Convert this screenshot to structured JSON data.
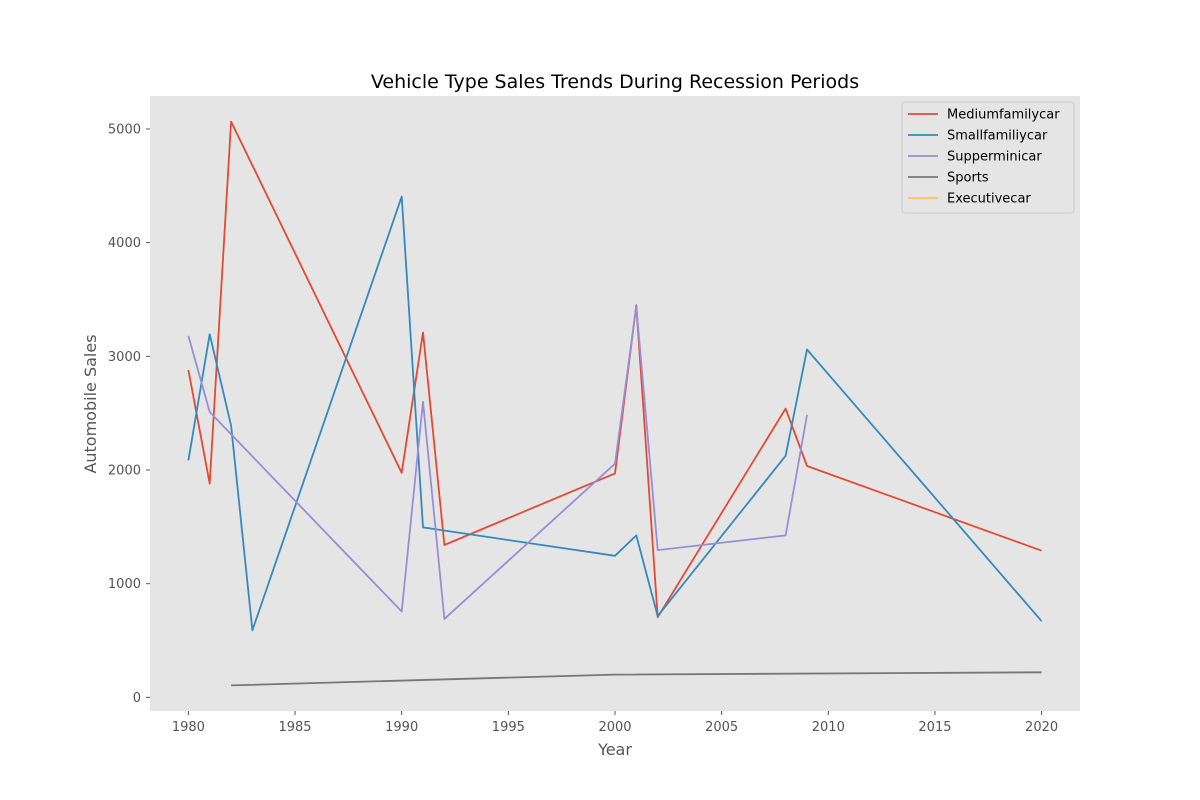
{
  "chart_data": {
    "type": "line",
    "title": "Vehicle Type Sales Trends During Recession Periods",
    "xlabel": "Year",
    "ylabel": "Automobile Sales",
    "xlim": [
      1978.2,
      2021.8
    ],
    "ylim": [
      -120,
      5290
    ],
    "xticks": [
      1980,
      1985,
      1990,
      1995,
      2000,
      2005,
      2010,
      2015,
      2020
    ],
    "yticks": [
      0,
      1000,
      2000,
      3000,
      4000,
      5000
    ],
    "grid": false,
    "legend_position": "top-right",
    "background": "#e5e5e5",
    "series": [
      {
        "name": "Mediumfamilycar",
        "color": "#e24a33",
        "points": [
          [
            1980,
            2880
          ],
          [
            1981,
            1880
          ],
          [
            1982,
            5065
          ],
          [
            1990,
            1975
          ],
          [
            1991,
            3210
          ],
          [
            1992,
            1340
          ],
          [
            2000,
            1970
          ],
          [
            2001,
            3450
          ],
          [
            2002,
            705
          ],
          [
            2008,
            2540
          ],
          [
            2009,
            2035
          ],
          [
            2020,
            1290
          ]
        ]
      },
      {
        "name": "Smallfamiliycar",
        "color": "#348abd",
        "points": [
          [
            1980,
            2085
          ],
          [
            1981,
            3195
          ],
          [
            1982,
            2390
          ],
          [
            1983,
            590
          ],
          [
            1990,
            4405
          ],
          [
            1991,
            1495
          ],
          [
            2000,
            1245
          ],
          [
            2001,
            1425
          ],
          [
            2002,
            715
          ],
          [
            2008,
            2125
          ],
          [
            2009,
            3060
          ],
          [
            2020,
            670
          ]
        ]
      },
      {
        "name": "Supperminicar",
        "color": "#988ed5",
        "points": [
          [
            1980,
            3180
          ],
          [
            1981,
            2510
          ],
          [
            1990,
            755
          ],
          [
            1991,
            2600
          ],
          [
            1992,
            690
          ],
          [
            2000,
            2055
          ],
          [
            2001,
            3440
          ],
          [
            2002,
            1295
          ],
          [
            2008,
            1425
          ],
          [
            2009,
            2485
          ]
        ]
      },
      {
        "name": "Sports",
        "color": "#777777",
        "points": [
          [
            1982,
            105
          ],
          [
            2000,
            200
          ],
          [
            2020,
            220
          ]
        ]
      },
      {
        "name": "Executivecar",
        "color": "#fbc15e",
        "points": []
      }
    ]
  }
}
